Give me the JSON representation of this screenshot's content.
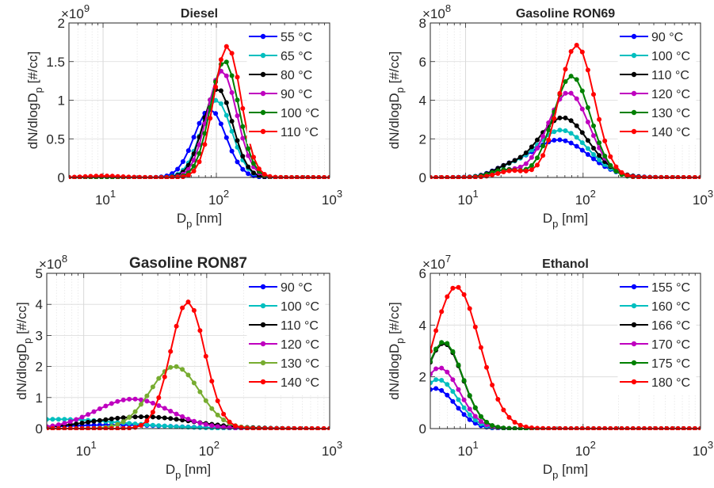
{
  "figure": {
    "xlabel_main": "D",
    "xlabel_sub": "p",
    "xlabel_unit": " [nm]",
    "ylabel_main": "dN/dlogD",
    "ylabel_sub": "p",
    "ylabel_unit": " [#/cc]",
    "x_tick_base": "10",
    "x_tick_exponents": [
      "1",
      "2",
      "3"
    ]
  },
  "chart_data": [
    {
      "type": "line",
      "title": "Diesel",
      "xscale": "log",
      "xlim": [
        5,
        1000
      ],
      "ylim": [
        0,
        2
      ],
      "yticks": [
        "0",
        "0.5",
        "1",
        "1.5",
        "2"
      ],
      "yticks_values": [
        0,
        0.5,
        1,
        1.5,
        2
      ],
      "exponent": "9",
      "grid": "on",
      "legend_placement": "top-right",
      "series": [
        {
          "name": "55 °C",
          "color": "#0000ff",
          "peak_x": 88,
          "peak_y": 0.88,
          "sigma": 0.14,
          "tail_y": 0.01
        },
        {
          "name": "65 °C",
          "color": "#00bfbf",
          "peak_x": 100,
          "peak_y": 1.0,
          "sigma": 0.135,
          "tail_y": 0.005
        },
        {
          "name": "80 °C",
          "color": "#000000",
          "peak_x": 103,
          "peak_y": 1.15,
          "sigma": 0.13,
          "tail_y": 0.005
        },
        {
          "name": "90 °C",
          "color": "#bf00bf",
          "peak_x": 112,
          "peak_y": 1.38,
          "sigma": 0.13,
          "tail_y": 0.005
        },
        {
          "name": "100 °C",
          "color": "#008000",
          "peak_x": 118,
          "peak_y": 1.51,
          "sigma": 0.125,
          "tail_y": 0.005
        },
        {
          "name": "110 °C",
          "color": "#ff0000",
          "peak_x": 125,
          "peak_y": 1.7,
          "sigma": 0.12,
          "tail_y": 0.02
        }
      ]
    },
    {
      "type": "line",
      "title": "Gasoline RON69",
      "xscale": "log",
      "xlim": [
        5,
        1000
      ],
      "ylim": [
        0,
        8
      ],
      "yticks": [
        "0",
        "2",
        "4",
        "6",
        "8"
      ],
      "yticks_values": [
        0,
        2,
        4,
        6,
        8
      ],
      "exponent": "8",
      "grid": "on",
      "legend_placement": "top-right",
      "series": [
        {
          "name": "90 °C",
          "color": "#0000ff",
          "peak_x": 62,
          "peak_y": 1.95,
          "sigma": 0.25,
          "tail_y": 0,
          "shoulder_x": 22,
          "shoulder_y": 0.3
        },
        {
          "name": "100 °C",
          "color": "#00bfbf",
          "peak_x": 65,
          "peak_y": 2.45,
          "sigma": 0.23,
          "tail_y": 0,
          "shoulder_x": 22,
          "shoulder_y": 0.35
        },
        {
          "name": "110 °C",
          "color": "#000000",
          "peak_x": 67,
          "peak_y": 3.1,
          "sigma": 0.22,
          "tail_y": 0,
          "shoulder_x": 22,
          "shoulder_y": 0.4
        },
        {
          "name": "120 °C",
          "color": "#bf00bf",
          "peak_x": 75,
          "peak_y": 4.4,
          "sigma": 0.18,
          "tail_y": 0,
          "shoulder_x": 22,
          "shoulder_y": 0.35
        },
        {
          "name": "130 °C",
          "color": "#008000",
          "peak_x": 80,
          "peak_y": 5.25,
          "sigma": 0.16,
          "tail_y": 0,
          "shoulder_x": 22,
          "shoulder_y": 0.4
        },
        {
          "name": "140 °C",
          "color": "#ff0000",
          "peak_x": 88,
          "peak_y": 6.85,
          "sigma": 0.15,
          "tail_y": 0,
          "shoulder_x": 25,
          "shoulder_y": 0.35
        }
      ]
    },
    {
      "type": "line",
      "title": "Gasoline RON87",
      "xscale": "log",
      "xlim": [
        5,
        1000
      ],
      "ylim": [
        0,
        5
      ],
      "yticks": [
        "0",
        "1",
        "2",
        "3",
        "4",
        "5"
      ],
      "yticks_values": [
        0,
        1,
        2,
        3,
        4,
        5
      ],
      "exponent": "8",
      "grid": "on",
      "legend_placement": "top-right",
      "series": [
        {
          "name": "90 °C",
          "color": "#0000ff",
          "peak_x": 18,
          "peak_y": 0.12,
          "sigma": 0.45,
          "tail_y": 0
        },
        {
          "name": "100 °C",
          "color": "#00bfbf",
          "peak_x": 6,
          "peak_y": 0.3,
          "sigma": 0.55,
          "tail_y": 0
        },
        {
          "name": "110 °C",
          "color": "#000000",
          "peak_x": 30,
          "peak_y": 0.38,
          "sigma": 0.4,
          "tail_y": 0
        },
        {
          "name": "120 °C",
          "color": "#bf00bf",
          "peak_x": 25,
          "peak_y": 0.95,
          "sigma": 0.3,
          "tail_y": 0
        },
        {
          "name": "130 °C",
          "color": "#77ac30",
          "peak_x": 55,
          "peak_y": 2.0,
          "sigma": 0.2,
          "tail_y": 0
        },
        {
          "name": "140 °C",
          "color": "#ff0000",
          "peak_x": 70,
          "peak_y": 4.08,
          "sigma": 0.14,
          "tail_y": 0
        }
      ]
    },
    {
      "type": "line",
      "title": "Ethanol",
      "xscale": "log",
      "xlim": [
        5,
        1000
      ],
      "ylim": [
        0,
        6
      ],
      "yticks": [
        "0",
        "2",
        "4",
        "6"
      ],
      "yticks_values": [
        0,
        2,
        4,
        6
      ],
      "exponent": "7",
      "grid": "on",
      "legend_placement": "top-right",
      "series": [
        {
          "name": "155 °C",
          "color": "#0000ff",
          "peak_x": 5.5,
          "peak_y": 1.55,
          "sigma": 0.17,
          "tail_y": 0
        },
        {
          "name": "160 °C",
          "color": "#00bfbf",
          "peak_x": 5.8,
          "peak_y": 1.9,
          "sigma": 0.17,
          "tail_y": 0
        },
        {
          "name": "166 °C",
          "color": "#000000",
          "peak_x": 6.5,
          "peak_y": 3.3,
          "sigma": 0.16,
          "tail_y": 0
        },
        {
          "name": "170 °C",
          "color": "#bf00bf",
          "peak_x": 6.0,
          "peak_y": 2.35,
          "sigma": 0.17,
          "tail_y": 0
        },
        {
          "name": "175 °C",
          "color": "#008000",
          "peak_x": 6.5,
          "peak_y": 3.35,
          "sigma": 0.16,
          "tail_y": 0
        },
        {
          "name": "180 °C",
          "color": "#ff0000",
          "peak_x": 8.3,
          "peak_y": 5.48,
          "sigma": 0.2,
          "tail_y": 0
        }
      ]
    }
  ]
}
